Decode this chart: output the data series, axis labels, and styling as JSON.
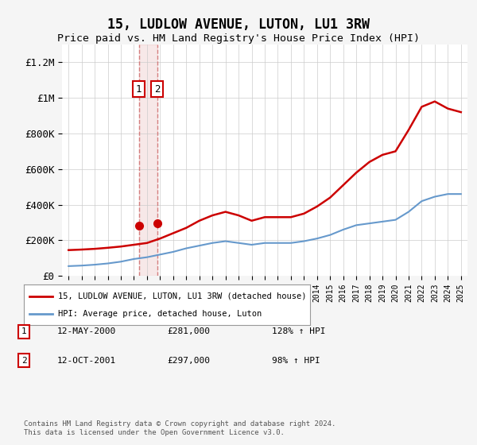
{
  "title": "15, LUDLOW AVENUE, LUTON, LU1 3RW",
  "subtitle": "Price paid vs. HM Land Registry's House Price Index (HPI)",
  "hpi_years": [
    1995,
    1996,
    1997,
    1998,
    1999,
    2000,
    2001,
    2002,
    2003,
    2004,
    2005,
    2006,
    2007,
    2008,
    2009,
    2010,
    2011,
    2012,
    2013,
    2014,
    2015,
    2016,
    2017,
    2018,
    2019,
    2020,
    2021,
    2022,
    2023,
    2024,
    2025
  ],
  "hpi_values": [
    55000,
    58000,
    63000,
    70000,
    80000,
    95000,
    105000,
    120000,
    135000,
    155000,
    170000,
    185000,
    195000,
    185000,
    175000,
    185000,
    185000,
    185000,
    195000,
    210000,
    230000,
    260000,
    285000,
    295000,
    305000,
    315000,
    360000,
    420000,
    445000,
    460000,
    460000
  ],
  "property_years": [
    1995,
    1996,
    1997,
    1998,
    1999,
    2000,
    2001,
    2002,
    2003,
    2004,
    2005,
    2006,
    2007,
    2008,
    2009,
    2010,
    2011,
    2012,
    2013,
    2014,
    2015,
    2016,
    2017,
    2018,
    2019,
    2020,
    2021,
    2022,
    2023,
    2024,
    2025
  ],
  "property_values": [
    145000,
    148000,
    152000,
    158000,
    165000,
    175000,
    185000,
    210000,
    240000,
    270000,
    310000,
    340000,
    360000,
    340000,
    310000,
    330000,
    330000,
    330000,
    350000,
    390000,
    440000,
    510000,
    580000,
    640000,
    680000,
    700000,
    820000,
    950000,
    980000,
    940000,
    920000
  ],
  "purchase1_year": 2000.37,
  "purchase1_price": 281000,
  "purchase1_label": "1",
  "purchase2_year": 2001.79,
  "purchase2_price": 297000,
  "purchase2_label": "2",
  "ylim": [
    0,
    1300000
  ],
  "yticks": [
    0,
    200000,
    400000,
    600000,
    800000,
    1000000,
    1200000
  ],
  "ytick_labels": [
    "£0",
    "£200K",
    "£400K",
    "£600K",
    "£800K",
    "£1M",
    "£1.2M"
  ],
  "xlim": [
    1994.5,
    2025.5
  ],
  "xticks": [
    1995,
    1996,
    1997,
    1998,
    1999,
    2000,
    2001,
    2002,
    2003,
    2004,
    2005,
    2006,
    2007,
    2008,
    2009,
    2010,
    2011,
    2012,
    2013,
    2014,
    2015,
    2016,
    2017,
    2018,
    2019,
    2020,
    2021,
    2022,
    2023,
    2024,
    2025
  ],
  "property_color": "#cc0000",
  "hpi_color": "#6699cc",
  "marker_color": "#cc0000",
  "vline_color": "#cc6666",
  "legend_label_property": "15, LUDLOW AVENUE, LUTON, LU1 3RW (detached house)",
  "legend_label_hpi": "HPI: Average price, detached house, Luton",
  "table_entries": [
    {
      "num": "1",
      "date": "12-MAY-2000",
      "price": "£281,000",
      "hpi": "128% ↑ HPI"
    },
    {
      "num": "2",
      "date": "12-OCT-2001",
      "price": "£297,000",
      "hpi": "98% ↑ HPI"
    }
  ],
  "footnote": "Contains HM Land Registry data © Crown copyright and database right 2024.\nThis data is licensed under the Open Government Licence v3.0.",
  "bg_color": "#f5f5f5",
  "plot_bg_color": "#ffffff"
}
